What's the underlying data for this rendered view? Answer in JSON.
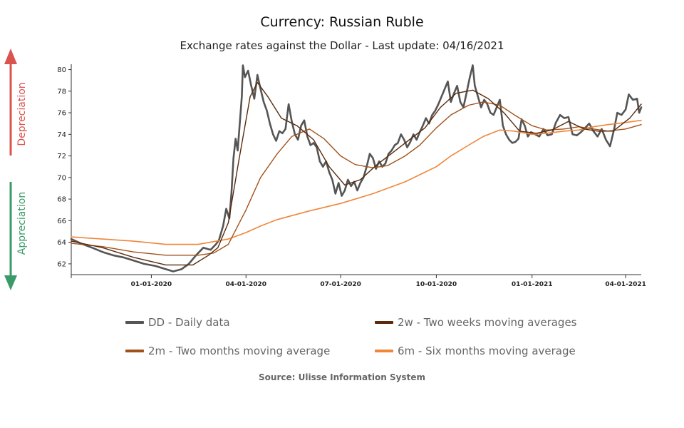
{
  "title": "Currency: Russian Ruble",
  "subtitle": "Exchange rates against the Dollar - Last update: 04/16/2021",
  "source": "Source: Ulisse Information System",
  "side_labels": {
    "depreciation": "Depreciation",
    "appreciation": "Appreciation"
  },
  "colors": {
    "depreciation": "#d9534f",
    "appreciation": "#3a9a6a",
    "daily": "#555555",
    "two_weeks": "#5a2a0a",
    "two_months": "#a0521a",
    "six_months": "#f0863a"
  },
  "chart_data": {
    "type": "line",
    "ylim": [
      61,
      80.5
    ],
    "xlim": [
      "2019-10-16",
      "2021-04-16"
    ],
    "yticks": [
      62,
      64,
      66,
      68,
      70,
      72,
      74,
      76,
      78,
      80
    ],
    "xticks": [
      {
        "date": "2020-01-01",
        "label": "01-01-2020"
      },
      {
        "date": "2020-04-01",
        "label": "04-01-2020"
      },
      {
        "date": "2020-07-01",
        "label": "07-01-2020"
      },
      {
        "date": "2020-10-01",
        "label": "10-01-2020"
      },
      {
        "date": "2021-01-01",
        "label": "01-01-2021"
      },
      {
        "date": "2021-04-01",
        "label": "04-01-2021"
      }
    ],
    "legend_position": "bottom",
    "series": [
      {
        "key": "daily",
        "name": "DD - Daily data",
        "points": [
          [
            "2019-10-16",
            64.3
          ],
          [
            "2019-10-25",
            63.9
          ],
          [
            "2019-11-05",
            63.5
          ],
          [
            "2019-11-15",
            63.1
          ],
          [
            "2019-11-25",
            62.8
          ],
          [
            "2019-12-05",
            62.6
          ],
          [
            "2019-12-15",
            62.3
          ],
          [
            "2019-12-25",
            62.0
          ],
          [
            "2020-01-05",
            61.8
          ],
          [
            "2020-01-15",
            61.5
          ],
          [
            "2020-01-22",
            61.3
          ],
          [
            "2020-01-30",
            61.5
          ],
          [
            "2020-02-06",
            62.0
          ],
          [
            "2020-02-13",
            62.8
          ],
          [
            "2020-02-20",
            63.5
          ],
          [
            "2020-02-27",
            63.3
          ],
          [
            "2020-03-03",
            63.8
          ],
          [
            "2020-03-06",
            64.2
          ],
          [
            "2020-03-10",
            65.5
          ],
          [
            "2020-03-13",
            67.1
          ],
          [
            "2020-03-16",
            66.2
          ],
          [
            "2020-03-18",
            68.5
          ],
          [
            "2020-03-20",
            71.8
          ],
          [
            "2020-03-22",
            73.6
          ],
          [
            "2020-03-24",
            72.5
          ],
          [
            "2020-03-26",
            75.0
          ],
          [
            "2020-03-28",
            77.5
          ],
          [
            "2020-03-29",
            80.4
          ],
          [
            "2020-03-31",
            79.3
          ],
          [
            "2020-04-03",
            79.9
          ],
          [
            "2020-04-06",
            78.5
          ],
          [
            "2020-04-09",
            77.3
          ],
          [
            "2020-04-12",
            79.5
          ],
          [
            "2020-04-15",
            78.2
          ],
          [
            "2020-04-18",
            77.0
          ],
          [
            "2020-04-21",
            76.2
          ],
          [
            "2020-04-24",
            75.0
          ],
          [
            "2020-04-27",
            74.0
          ],
          [
            "2020-04-30",
            73.4
          ],
          [
            "2020-05-03",
            74.3
          ],
          [
            "2020-05-06",
            74.1
          ],
          [
            "2020-05-09",
            74.5
          ],
          [
            "2020-05-12",
            76.8
          ],
          [
            "2020-05-15",
            75.2
          ],
          [
            "2020-05-18",
            74.0
          ],
          [
            "2020-05-21",
            73.5
          ],
          [
            "2020-05-24",
            74.8
          ],
          [
            "2020-05-27",
            75.3
          ],
          [
            "2020-05-30",
            73.8
          ],
          [
            "2020-06-02",
            73.0
          ],
          [
            "2020-06-05",
            73.2
          ],
          [
            "2020-06-08",
            72.8
          ],
          [
            "2020-06-11",
            71.5
          ],
          [
            "2020-06-14",
            71.0
          ],
          [
            "2020-06-17",
            71.5
          ],
          [
            "2020-06-20",
            70.5
          ],
          [
            "2020-06-23",
            69.8
          ],
          [
            "2020-06-26",
            68.5
          ],
          [
            "2020-06-29",
            69.5
          ],
          [
            "2020-07-02",
            68.3
          ],
          [
            "2020-07-05",
            68.8
          ],
          [
            "2020-07-08",
            69.8
          ],
          [
            "2020-07-11",
            69.2
          ],
          [
            "2020-07-14",
            69.6
          ],
          [
            "2020-07-17",
            68.8
          ],
          [
            "2020-07-20",
            69.5
          ],
          [
            "2020-07-23",
            70.0
          ],
          [
            "2020-07-26",
            71.0
          ],
          [
            "2020-07-29",
            72.2
          ],
          [
            "2020-08-01",
            71.8
          ],
          [
            "2020-08-04",
            70.8
          ],
          [
            "2020-08-07",
            71.5
          ],
          [
            "2020-08-10",
            71.0
          ],
          [
            "2020-08-13",
            71.3
          ],
          [
            "2020-08-16",
            72.2
          ],
          [
            "2020-08-19",
            72.5
          ],
          [
            "2020-08-22",
            73.0
          ],
          [
            "2020-08-25",
            73.2
          ],
          [
            "2020-08-28",
            74.0
          ],
          [
            "2020-08-31",
            73.5
          ],
          [
            "2020-09-03",
            72.8
          ],
          [
            "2020-09-06",
            73.3
          ],
          [
            "2020-09-09",
            74.0
          ],
          [
            "2020-09-12",
            73.5
          ],
          [
            "2020-09-15",
            74.2
          ],
          [
            "2020-09-18",
            74.8
          ],
          [
            "2020-09-21",
            75.5
          ],
          [
            "2020-09-24",
            75.0
          ],
          [
            "2020-09-27",
            75.8
          ],
          [
            "2020-09-30",
            76.2
          ],
          [
            "2020-10-03",
            76.8
          ],
          [
            "2020-10-06",
            77.5
          ],
          [
            "2020-10-09",
            78.2
          ],
          [
            "2020-10-12",
            78.9
          ],
          [
            "2020-10-15",
            77.0
          ],
          [
            "2020-10-18",
            77.8
          ],
          [
            "2020-10-21",
            78.5
          ],
          [
            "2020-10-24",
            77.0
          ],
          [
            "2020-10-27",
            76.5
          ],
          [
            "2020-10-30",
            77.8
          ],
          [
            "2020-11-02",
            79.2
          ],
          [
            "2020-11-05",
            80.4
          ],
          [
            "2020-11-07",
            78.5
          ],
          [
            "2020-11-10",
            77.5
          ],
          [
            "2020-11-13",
            76.5
          ],
          [
            "2020-11-16",
            77.2
          ],
          [
            "2020-11-19",
            76.8
          ],
          [
            "2020-11-22",
            76.0
          ],
          [
            "2020-11-25",
            75.8
          ],
          [
            "2020-11-28",
            76.5
          ],
          [
            "2020-12-01",
            77.2
          ],
          [
            "2020-12-04",
            74.8
          ],
          [
            "2020-12-07",
            74.0
          ],
          [
            "2020-12-10",
            73.5
          ],
          [
            "2020-12-13",
            73.2
          ],
          [
            "2020-12-16",
            73.3
          ],
          [
            "2020-12-19",
            73.6
          ],
          [
            "2020-12-22",
            75.4
          ],
          [
            "2020-12-25",
            74.8
          ],
          [
            "2020-12-28",
            73.8
          ],
          [
            "2020-12-31",
            74.2
          ],
          [
            "2021-01-04",
            74.0
          ],
          [
            "2021-01-08",
            73.8
          ],
          [
            "2021-01-12",
            74.5
          ],
          [
            "2021-01-16",
            73.9
          ],
          [
            "2021-01-20",
            74.0
          ],
          [
            "2021-01-24",
            75.1
          ],
          [
            "2021-01-28",
            75.8
          ],
          [
            "2021-02-01",
            75.5
          ],
          [
            "2021-02-05",
            75.6
          ],
          [
            "2021-02-09",
            74.0
          ],
          [
            "2021-02-13",
            73.9
          ],
          [
            "2021-02-17",
            74.2
          ],
          [
            "2021-02-21",
            74.6
          ],
          [
            "2021-02-25",
            75.0
          ],
          [
            "2021-03-01",
            74.3
          ],
          [
            "2021-03-05",
            73.8
          ],
          [
            "2021-03-09",
            74.5
          ],
          [
            "2021-03-13",
            73.5
          ],
          [
            "2021-03-17",
            72.9
          ],
          [
            "2021-03-21",
            74.5
          ],
          [
            "2021-03-24",
            76.0
          ],
          [
            "2021-03-28",
            75.8
          ],
          [
            "2021-04-01",
            76.3
          ],
          [
            "2021-04-04",
            77.7
          ],
          [
            "2021-04-08",
            77.2
          ],
          [
            "2021-04-12",
            77.3
          ],
          [
            "2021-04-14",
            76.0
          ],
          [
            "2021-04-16",
            76.5
          ]
        ]
      },
      {
        "key": "two_weeks",
        "name": "2w - Two weeks moving averages",
        "points": [
          [
            "2019-10-16",
            64.1
          ],
          [
            "2019-11-15",
            63.5
          ],
          [
            "2019-12-15",
            62.6
          ],
          [
            "2020-01-15",
            61.9
          ],
          [
            "2020-02-10",
            61.9
          ],
          [
            "2020-02-25",
            62.8
          ],
          [
            "2020-03-05",
            63.5
          ],
          [
            "2020-03-15",
            65.8
          ],
          [
            "2020-03-25",
            71.5
          ],
          [
            "2020-04-05",
            77.5
          ],
          [
            "2020-04-12",
            78.8
          ],
          [
            "2020-04-22",
            77.5
          ],
          [
            "2020-05-05",
            75.5
          ],
          [
            "2020-05-20",
            74.8
          ],
          [
            "2020-06-05",
            73.5
          ],
          [
            "2020-06-20",
            71.0
          ],
          [
            "2020-07-05",
            69.3
          ],
          [
            "2020-07-20",
            69.8
          ],
          [
            "2020-08-05",
            71.2
          ],
          [
            "2020-08-20",
            72.3
          ],
          [
            "2020-09-05",
            73.5
          ],
          [
            "2020-09-20",
            74.6
          ],
          [
            "2020-10-05",
            76.5
          ],
          [
            "2020-10-20",
            77.8
          ],
          [
            "2020-11-05",
            78.1
          ],
          [
            "2020-11-20",
            77.3
          ],
          [
            "2020-12-05",
            76.0
          ],
          [
            "2020-12-20",
            74.3
          ],
          [
            "2021-01-05",
            74.1
          ],
          [
            "2021-01-20",
            74.4
          ],
          [
            "2021-02-05",
            75.2
          ],
          [
            "2021-02-20",
            74.5
          ],
          [
            "2021-03-05",
            74.3
          ],
          [
            "2021-03-20",
            74.3
          ],
          [
            "2021-04-05",
            75.5
          ],
          [
            "2021-04-16",
            76.8
          ]
        ]
      },
      {
        "key": "two_months",
        "name": "2m - Two months moving average",
        "points": [
          [
            "2019-10-16",
            63.9
          ],
          [
            "2019-11-15",
            63.6
          ],
          [
            "2019-12-15",
            63.1
          ],
          [
            "2020-01-15",
            62.8
          ],
          [
            "2020-02-15",
            62.8
          ],
          [
            "2020-03-01",
            63.0
          ],
          [
            "2020-03-15",
            63.8
          ],
          [
            "2020-04-01",
            67.0
          ],
          [
            "2020-04-15",
            70.0
          ],
          [
            "2020-05-01",
            72.2
          ],
          [
            "2020-05-15",
            73.8
          ],
          [
            "2020-06-01",
            74.5
          ],
          [
            "2020-06-15",
            73.6
          ],
          [
            "2020-07-01",
            72.0
          ],
          [
            "2020-07-15",
            71.2
          ],
          [
            "2020-08-01",
            70.9
          ],
          [
            "2020-08-15",
            71.1
          ],
          [
            "2020-09-01",
            72.0
          ],
          [
            "2020-09-15",
            73.0
          ],
          [
            "2020-10-01",
            74.6
          ],
          [
            "2020-10-15",
            75.8
          ],
          [
            "2020-11-01",
            76.7
          ],
          [
            "2020-11-15",
            77.0
          ],
          [
            "2020-12-01",
            76.7
          ],
          [
            "2020-12-15",
            75.8
          ],
          [
            "2021-01-01",
            74.8
          ],
          [
            "2021-01-15",
            74.4
          ],
          [
            "2021-02-01",
            74.5
          ],
          [
            "2021-02-15",
            74.7
          ],
          [
            "2021-03-01",
            74.5
          ],
          [
            "2021-03-15",
            74.3
          ],
          [
            "2021-04-01",
            74.5
          ],
          [
            "2021-04-16",
            74.9
          ]
        ]
      },
      {
        "key": "six_months",
        "name": "6m - Six months moving average",
        "points": [
          [
            "2019-10-16",
            64.5
          ],
          [
            "2019-11-15",
            64.3
          ],
          [
            "2019-12-15",
            64.1
          ],
          [
            "2020-01-15",
            63.8
          ],
          [
            "2020-02-15",
            63.8
          ],
          [
            "2020-03-15",
            64.3
          ],
          [
            "2020-04-01",
            64.9
          ],
          [
            "2020-04-15",
            65.5
          ],
          [
            "2020-05-01",
            66.1
          ],
          [
            "2020-06-01",
            66.9
          ],
          [
            "2020-07-01",
            67.6
          ],
          [
            "2020-08-01",
            68.5
          ],
          [
            "2020-09-01",
            69.6
          ],
          [
            "2020-10-01",
            71.0
          ],
          [
            "2020-10-15",
            72.0
          ],
          [
            "2020-11-01",
            73.0
          ],
          [
            "2020-11-15",
            73.8
          ],
          [
            "2020-12-01",
            74.4
          ],
          [
            "2020-12-15",
            74.3
          ],
          [
            "2021-01-01",
            74.0
          ],
          [
            "2021-01-15",
            74.1
          ],
          [
            "2021-02-01",
            74.3
          ],
          [
            "2021-02-15",
            74.4
          ],
          [
            "2021-03-01",
            74.7
          ],
          [
            "2021-03-15",
            74.9
          ],
          [
            "2021-04-01",
            75.1
          ],
          [
            "2021-04-16",
            75.3
          ]
        ]
      }
    ]
  }
}
